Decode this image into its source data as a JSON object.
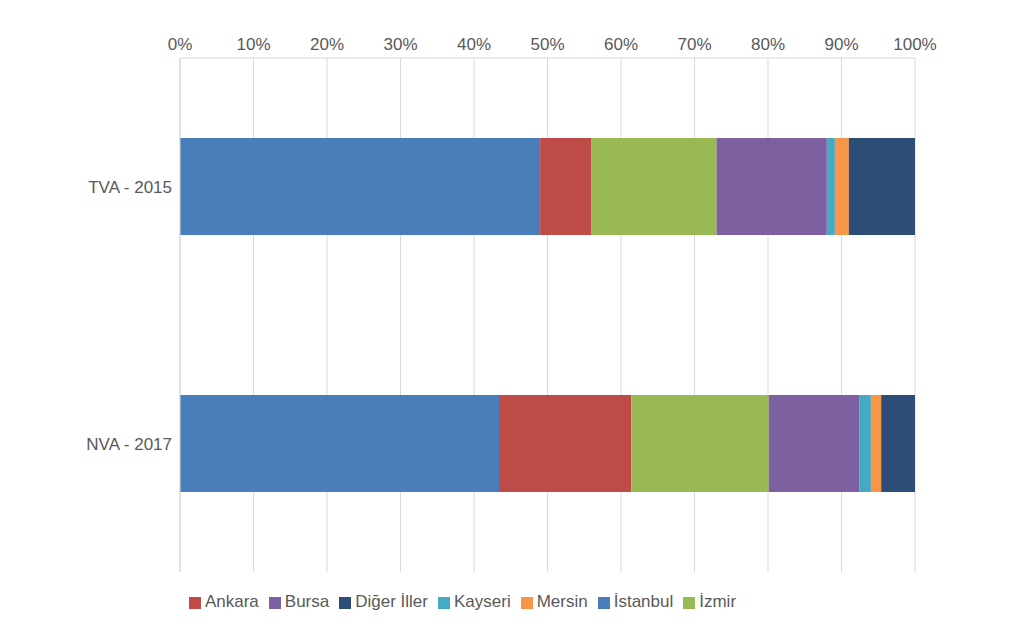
{
  "chart_data": {
    "type": "bar",
    "orientation": "horizontal",
    "stacked": true,
    "grid": true,
    "legend": "bottom",
    "categories": [
      "TVA - 2015",
      "NVA - 2017"
    ],
    "series": [
      {
        "name": "İstanbul",
        "color": "#4a7ebb",
        "values": [
          49.0,
          43.4
        ]
      },
      {
        "name": "Ankara",
        "color": "#be4b48",
        "values": [
          7.0,
          18.0
        ]
      },
      {
        "name": "İzmir",
        "color": "#98b954",
        "values": [
          17.0,
          18.7
        ]
      },
      {
        "name": "Bursa",
        "color": "#7d60a0",
        "values": [
          15.0,
          12.3
        ]
      },
      {
        "name": "Kayseri",
        "color": "#46aac4",
        "values": [
          1.1,
          1.6
        ]
      },
      {
        "name": "Mersin",
        "color": "#f79646",
        "values": [
          1.9,
          1.4
        ]
      },
      {
        "name": "Diğer İller",
        "color": "#2c4d75",
        "values": [
          9.0,
          4.6
        ]
      }
    ],
    "xlim": [
      0,
      100
    ],
    "xticks": [
      {
        "value": 0,
        "label": "0%"
      },
      {
        "value": 10,
        "label": "10%"
      },
      {
        "value": 20,
        "label": "20%"
      },
      {
        "value": 30,
        "label": "30%"
      },
      {
        "value": 40,
        "label": "40%"
      },
      {
        "value": 50,
        "label": "50%"
      },
      {
        "value": 60,
        "label": "60%"
      },
      {
        "value": 70,
        "label": "70%"
      },
      {
        "value": 80,
        "label": "80%"
      },
      {
        "value": 90,
        "label": "90%"
      },
      {
        "value": 100,
        "label": "100%"
      }
    ]
  }
}
